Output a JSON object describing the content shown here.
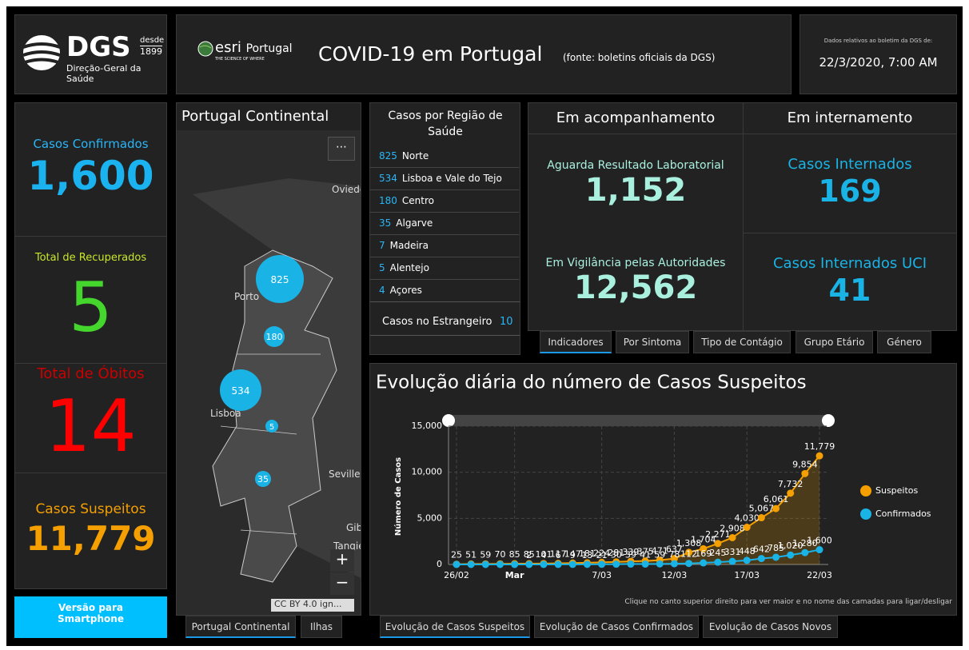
{
  "header": {
    "logo": {
      "mark": "DGS",
      "since": "desde",
      "year": "1899",
      "org": "Direção-Geral da Saúde"
    },
    "esri": {
      "brand": "esri",
      "country": "Portugal",
      "slogan": "THE SCIENCE OF WHERE"
    },
    "title": "COVID-19 em Portugal",
    "source": "(fonte: boletins oficiais da DGS)",
    "date_caption": "Dados relativos ao boletim da DGS de:",
    "date": "22/3/2020, 7:00 AM"
  },
  "stats": [
    {
      "label": "Casos Confirmados",
      "value": "1,600"
    },
    {
      "label": "Total de Recuperados",
      "value": "5"
    },
    {
      "label": "Total de Óbitos",
      "value": "14"
    },
    {
      "label": "Casos Suspeitos",
      "value": "11,779"
    }
  ],
  "smartphone_button": "Versão para Smartphone",
  "map": {
    "title": "Portugal Continental",
    "places": [
      "Oviedo",
      "Porto",
      "Lisboa",
      "Seville",
      "Gib",
      "Tangie"
    ],
    "clusters": [
      "825",
      "180",
      "534",
      "5",
      "35"
    ],
    "zoom_in": "+",
    "zoom_out": "−",
    "attribution": "CC BY 4.0 ign...",
    "tabs": [
      "Portugal Continental",
      "Ilhas"
    ]
  },
  "regions": {
    "title": "Casos por Região de Saúde",
    "rows": [
      [
        "825",
        "Norte"
      ],
      [
        "534",
        "Lisboa e Vale do Tejo"
      ],
      [
        "180",
        "Centro"
      ],
      [
        "35",
        "Algarve"
      ],
      [
        "7",
        "Madeira"
      ],
      [
        "5",
        "Alentejo"
      ],
      [
        "4",
        "Açores"
      ]
    ],
    "abroad": {
      "label": "Casos no Estrangeiro",
      "value": "10"
    }
  },
  "indicators": {
    "col1_title": "Em acompanhamento",
    "col2_title": "Em internamento",
    "cells": [
      {
        "label": "Aguarda Resultado Laboratorial",
        "value": "1,152"
      },
      {
        "label": "Casos Internados",
        "value": "169"
      },
      {
        "label": "Em Vigilância pelas Autoridades",
        "value": "12,562"
      },
      {
        "label": "Casos Internados UCI",
        "value": "41"
      }
    ],
    "tabs": [
      "Indicadores",
      "Por Sintoma",
      "Tipo de Contágio",
      "Grupo Etário",
      "Género"
    ]
  },
  "chart_tabs": [
    "Evolução de Casos Suspeitos",
    "Evolução de Casos Confirmados",
    "Evolução de Casos Novos"
  ],
  "chart_data": {
    "type": "line",
    "title": "Evolução diária do número de Casos Suspeitos",
    "y_label": "Número de Casos",
    "note": "Clique no canto superior direito para ver maior e no nome das camadas para ligar/desligar",
    "categories": [
      "26/02",
      null,
      null,
      null,
      "Mar",
      null,
      null,
      null,
      null,
      null,
      "7/03",
      null,
      null,
      null,
      null,
      "12/03",
      null,
      null,
      null,
      null,
      "17/03",
      null,
      null,
      null,
      null,
      "22/03"
    ],
    "series": [
      {
        "name": "Suspeitos",
        "color": "#f5a000",
        "area": true,
        "values": [
          25,
          51,
          59,
          70,
          85,
          85,
          101,
          117,
          147,
          181,
          224,
          281,
          339,
          375,
          471,
          637,
          1308,
          1704,
          2271,
          2908,
          4030,
          5067,
          6061,
          7732,
          9854,
          11779
        ],
        "value_labels": [
          "25",
          "51",
          "59",
          "70",
          "85",
          "85",
          "101",
          "117",
          "147",
          "181",
          "224",
          "281",
          "339",
          "375",
          "471",
          "637",
          "1,308",
          "1,704",
          "2,271",
          "2,908",
          "4,030",
          "5,067",
          "6,061",
          "7,732",
          "9,854",
          "11,779"
        ]
      },
      {
        "name": "Confirmados",
        "color": "#1ab3e6",
        "area": false,
        "values": [
          0,
          0,
          0,
          0,
          0,
          2,
          4,
          6,
          9,
          13,
          21,
          30,
          39,
          41,
          59,
          78,
          112,
          169,
          245,
          331,
          448,
          642,
          785,
          1020,
          1280,
          1600
        ],
        "value_labels": [
          null,
          null,
          null,
          null,
          null,
          "2",
          "4",
          "6",
          "9",
          "13",
          "21",
          "30",
          "39",
          "41",
          "59",
          "78",
          "112",
          "169",
          "245",
          "331",
          "448",
          "642",
          "785",
          "1,020",
          "1,280",
          "1,600"
        ]
      }
    ],
    "ylim": [
      0,
      15000
    ],
    "yticks": [
      0,
      {
        "value": 5000,
        "label": "5,000"
      },
      {
        "value": 10000,
        "label": "10,000"
      },
      {
        "value": 15000,
        "label": "15,000"
      }
    ],
    "grid": true,
    "legend": "right"
  }
}
